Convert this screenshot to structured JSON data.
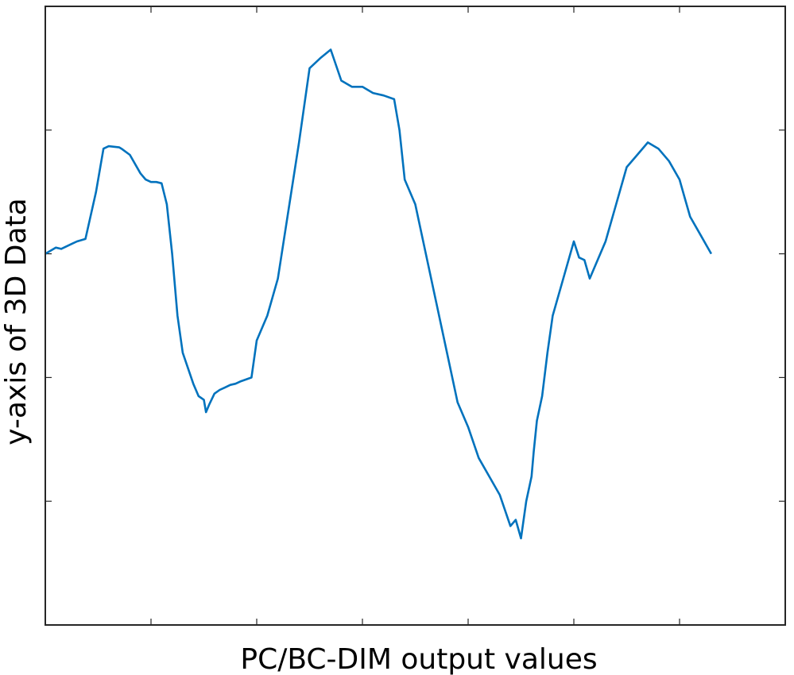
{
  "chart_data": {
    "type": "line",
    "title": "",
    "xlabel": "PC/BC-DIM output values",
    "ylabel": "y-axis of 3D Data",
    "xlim": [
      0,
      7
    ],
    "ylim": [
      0,
      5
    ],
    "x_ticks": [
      0,
      1,
      2,
      3,
      4,
      5,
      6,
      7
    ],
    "y_ticks": [
      1,
      2,
      3,
      4
    ],
    "tick_labels_shown": false,
    "grid": false,
    "colors": {
      "line": "#0072BD",
      "axes": "#262626"
    },
    "series": [
      {
        "x": [
          0.0,
          0.1,
          0.15,
          0.25,
          0.3,
          0.38,
          0.48,
          0.55,
          0.6,
          0.7,
          0.72,
          0.8,
          0.9,
          0.95,
          1.0,
          1.05,
          1.1,
          1.15,
          1.2,
          1.25,
          1.3,
          1.4,
          1.45,
          1.5,
          1.52,
          1.55,
          1.6,
          1.65,
          1.7,
          1.75,
          1.8,
          1.85,
          1.95,
          2.0,
          2.1,
          2.2,
          2.4,
          2.5,
          2.6,
          2.7,
          2.8,
          2.9,
          3.0,
          3.1,
          3.2,
          3.3,
          3.35,
          3.4,
          3.5,
          3.6,
          3.7,
          3.8,
          3.9,
          4.0,
          4.1,
          4.2,
          4.3,
          4.4,
          4.45,
          4.5,
          4.55,
          4.6,
          4.62,
          4.65,
          4.7,
          4.75,
          4.8,
          4.9,
          5.0,
          5.05,
          5.1,
          5.15,
          5.2,
          5.3,
          5.4,
          5.5,
          5.6,
          5.7,
          5.8,
          5.9,
          6.0,
          6.05,
          6.1,
          6.2,
          6.3
        ],
        "y": [
          3.0,
          3.05,
          3.04,
          3.08,
          3.1,
          3.12,
          3.5,
          3.85,
          3.87,
          3.86,
          3.85,
          3.8,
          3.65,
          3.6,
          3.58,
          3.58,
          3.57,
          3.4,
          3.0,
          2.5,
          2.2,
          1.95,
          1.85,
          1.82,
          1.72,
          1.78,
          1.87,
          1.9,
          1.92,
          1.94,
          1.95,
          1.97,
          2.0,
          2.3,
          2.5,
          2.8,
          3.9,
          4.5,
          4.58,
          4.65,
          4.4,
          4.35,
          4.35,
          4.3,
          4.28,
          4.25,
          4.0,
          3.6,
          3.4,
          3.0,
          2.6,
          2.2,
          1.8,
          1.6,
          1.35,
          1.2,
          1.05,
          0.8,
          0.85,
          0.7,
          1.0,
          1.2,
          1.4,
          1.65,
          1.85,
          2.2,
          2.5,
          2.8,
          3.1,
          2.97,
          2.95,
          2.8,
          2.9,
          3.1,
          3.4,
          3.7,
          3.8,
          3.9,
          3.85,
          3.75,
          3.6,
          3.45,
          3.3,
          3.15,
          3.0
        ]
      }
    ]
  }
}
